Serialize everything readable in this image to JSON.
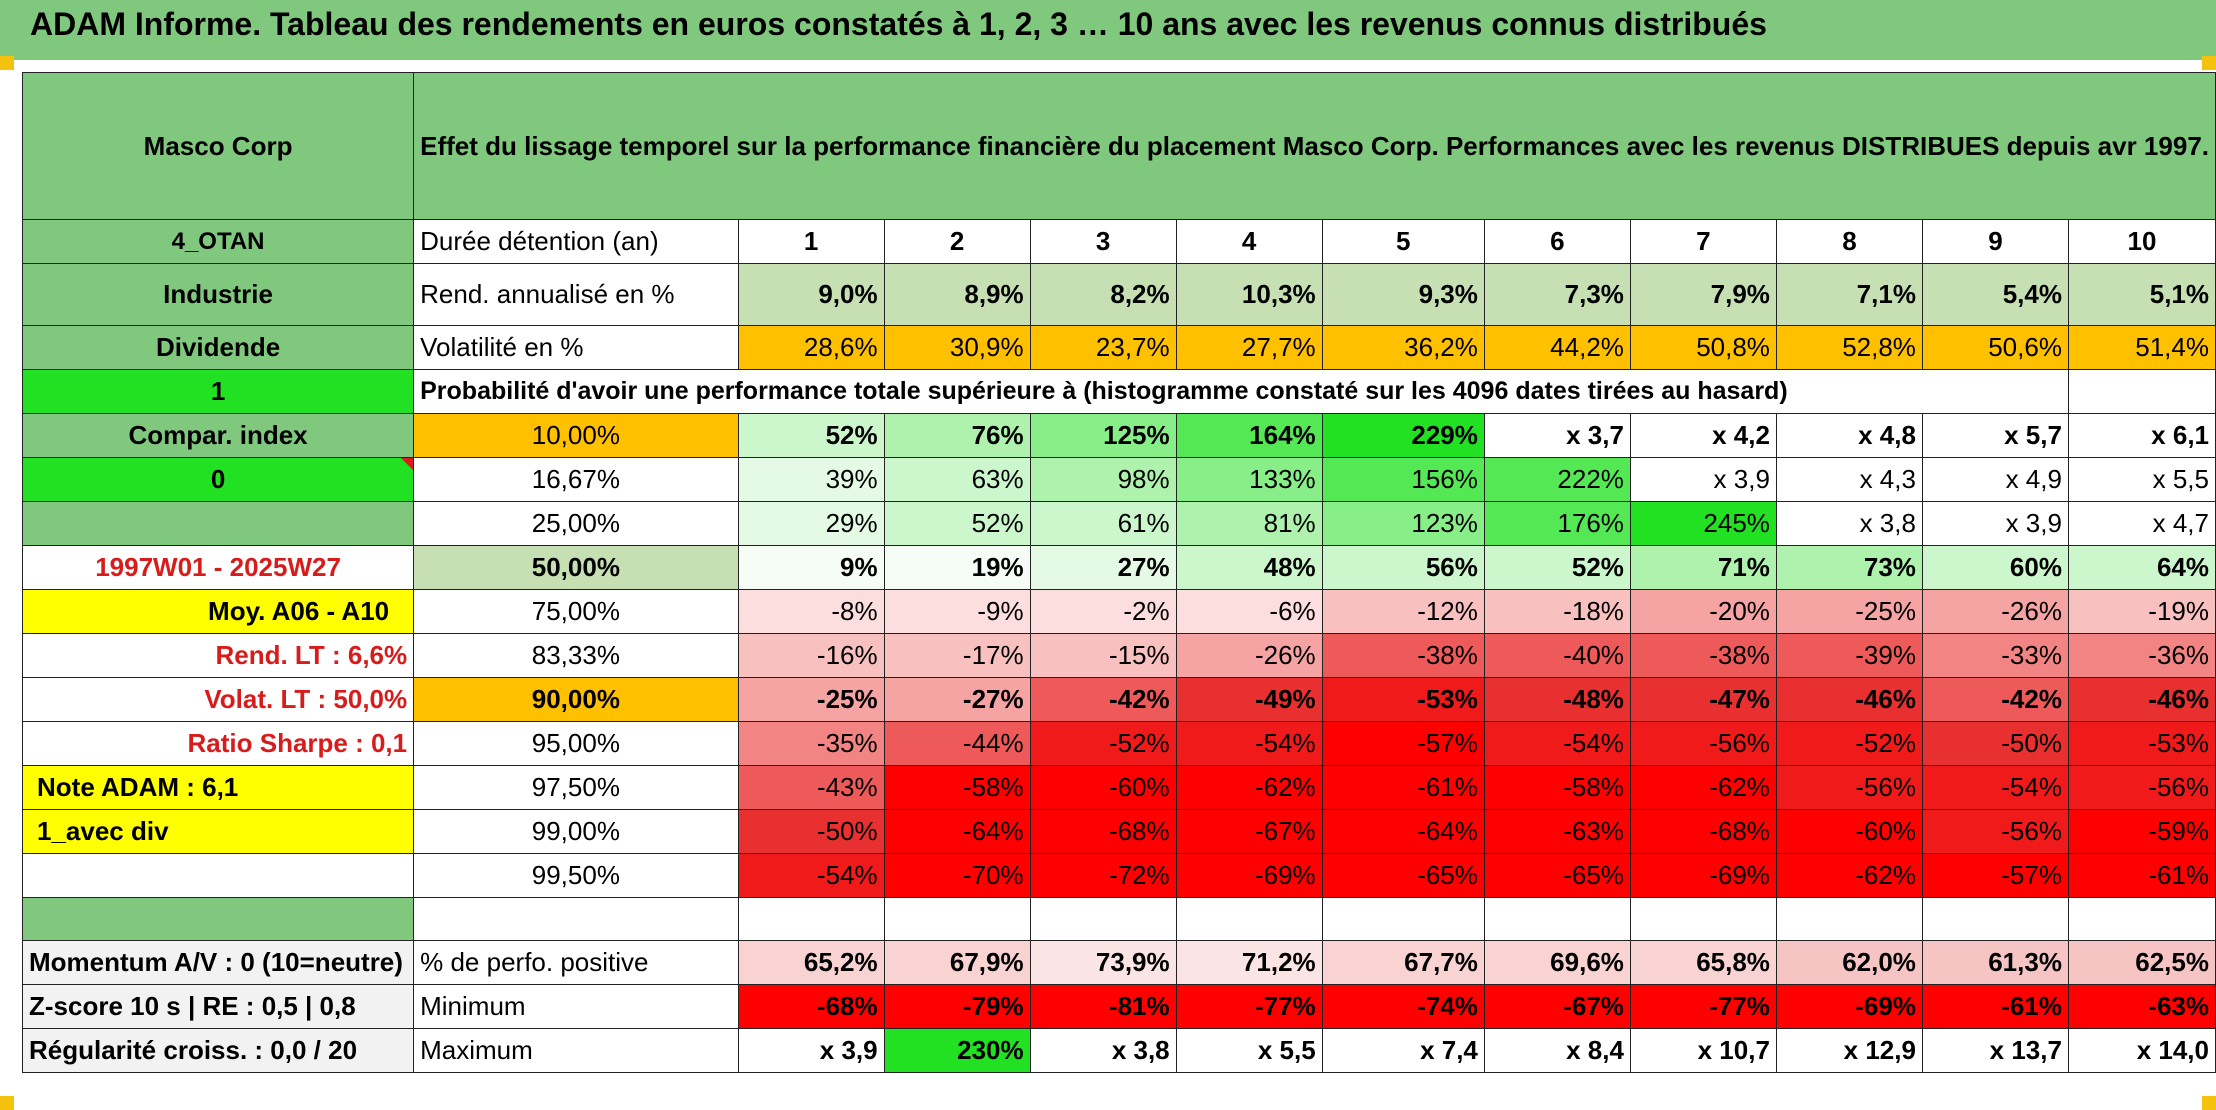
{
  "title": "ADAM Informe. Tableau des rendements en euros constatés à 1, 2, 3 … 10 ans avec les revenus connus distribués",
  "header": {
    "name": "Masco Corp",
    "description": "Effet du lissage temporel sur la performance financière du placement Masco Corp. Performances avec les revenus DISTRIBUES depuis avr 1997."
  },
  "side": {
    "code": "4_OTAN",
    "sector": "Industrie",
    "dividend_label": "Dividende",
    "index_value": "1",
    "compar_label": "Compar. index",
    "compar_value": "0",
    "period": "1997W01 - 2025W27",
    "moy": "Moy. A06 - A10",
    "rend_lt": "Rend. LT :    6,6%",
    "volat_lt": "Volat. LT :    50,0%",
    "sharpe": "Ratio Sharpe :    0,1",
    "note": "Note ADAM : 6,1",
    "mode": "1_avec div"
  },
  "table": {
    "duration_label": "Durée détention (an)",
    "years": [
      "1",
      "2",
      "3",
      "4",
      "5",
      "6",
      "7",
      "8",
      "9",
      "10"
    ],
    "rend_label": "Rend. annualisé en %",
    "rend": [
      "9,0%",
      "8,9%",
      "8,2%",
      "10,3%",
      "9,3%",
      "7,3%",
      "7,9%",
      "7,1%",
      "5,4%",
      "5,1%"
    ],
    "vol_label": "Volatilité en %",
    "vol": [
      "28,6%",
      "30,9%",
      "23,7%",
      "27,7%",
      "36,2%",
      "44,2%",
      "50,8%",
      "52,8%",
      "50,6%",
      "51,4%"
    ],
    "proba_label": "Probabilité d'avoir une performance totale supérieure à (histogramme constaté sur les 4096 dates tirées au hasard)",
    "quantiles": [
      {
        "p": "10,00%",
        "v": [
          "52%",
          "76%",
          "125%",
          "164%",
          "229%",
          "x 3,7",
          "x 4,2",
          "x 4,8",
          "x 5,7",
          "x 6,1"
        ]
      },
      {
        "p": "16,67%",
        "v": [
          "39%",
          "63%",
          "98%",
          "133%",
          "156%",
          "222%",
          "x 3,9",
          "x 4,3",
          "x 4,9",
          "x 5,5"
        ]
      },
      {
        "p": "25,00%",
        "v": [
          "29%",
          "52%",
          "61%",
          "81%",
          "123%",
          "176%",
          "245%",
          "x 3,8",
          "x 3,9",
          "x 4,7"
        ]
      },
      {
        "p": "50,00%",
        "v": [
          "9%",
          "19%",
          "27%",
          "48%",
          "56%",
          "52%",
          "71%",
          "73%",
          "60%",
          "64%"
        ]
      },
      {
        "p": "75,00%",
        "v": [
          "-8%",
          "-9%",
          "-2%",
          "-6%",
          "-12%",
          "-18%",
          "-20%",
          "-25%",
          "-26%",
          "-19%"
        ]
      },
      {
        "p": "83,33%",
        "v": [
          "-16%",
          "-17%",
          "-15%",
          "-26%",
          "-38%",
          "-40%",
          "-38%",
          "-39%",
          "-33%",
          "-36%"
        ]
      },
      {
        "p": "90,00%",
        "v": [
          "-25%",
          "-27%",
          "-42%",
          "-49%",
          "-53%",
          "-48%",
          "-47%",
          "-46%",
          "-42%",
          "-46%"
        ]
      },
      {
        "p": "95,00%",
        "v": [
          "-35%",
          "-44%",
          "-52%",
          "-54%",
          "-57%",
          "-54%",
          "-56%",
          "-52%",
          "-50%",
          "-53%"
        ]
      },
      {
        "p": "97,50%",
        "v": [
          "-43%",
          "-58%",
          "-60%",
          "-62%",
          "-61%",
          "-58%",
          "-62%",
          "-56%",
          "-54%",
          "-56%"
        ]
      },
      {
        "p": "99,00%",
        "v": [
          "-50%",
          "-64%",
          "-68%",
          "-67%",
          "-64%",
          "-63%",
          "-68%",
          "-60%",
          "-56%",
          "-59%"
        ]
      },
      {
        "p": "99,50%",
        "v": [
          "-54%",
          "-70%",
          "-72%",
          "-69%",
          "-65%",
          "-65%",
          "-69%",
          "-62%",
          "-57%",
          "-61%"
        ]
      }
    ],
    "bottom": [
      {
        "side": "Momentum A/V : 0 (10=neutre)",
        "label": "% de perfo. positive",
        "v": [
          "65,2%",
          "67,9%",
          "73,9%",
          "71,2%",
          "67,7%",
          "69,6%",
          "65,8%",
          "62,0%",
          "61,3%",
          "62,5%"
        ]
      },
      {
        "side": "Z-score 10 s | RE : 0,5 | 0,8",
        "label": "Minimum",
        "v": [
          "-68%",
          "-79%",
          "-81%",
          "-77%",
          "-74%",
          "-67%",
          "-77%",
          "-69%",
          "-61%",
          "-63%"
        ]
      },
      {
        "side": "Régularité croiss. : 0,0 / 20",
        "label": "Maximum",
        "v": [
          "x 3,9",
          "230%",
          "x 3,8",
          "x 5,5",
          "x 7,4",
          "x 8,4",
          "x 10,7",
          "x 12,9",
          "x 13,7",
          "x 14,0"
        ]
      }
    ]
  },
  "colors": {
    "header_green": "#80c87e",
    "bright_green": "#22e022",
    "yellow": "#ffff00",
    "orange": "#ffc000",
    "rend_green": "#c6e0b4",
    "dark_red": "#ff0000"
  }
}
